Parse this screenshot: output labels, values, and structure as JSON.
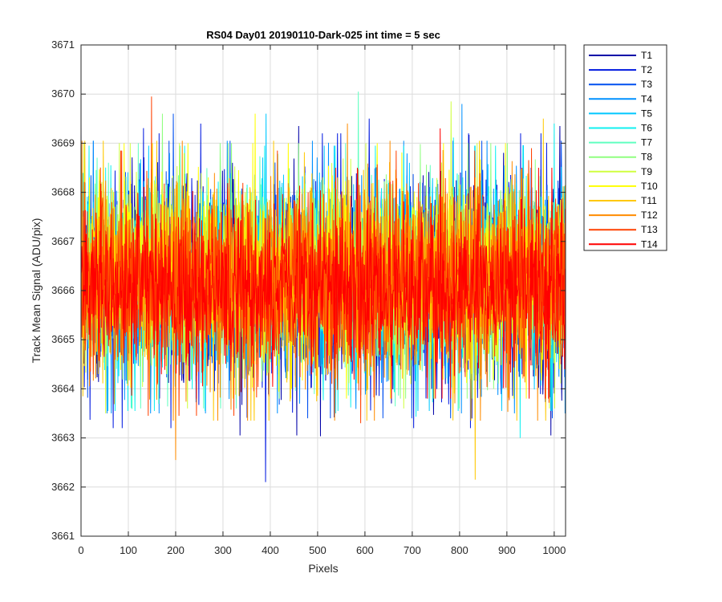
{
  "chart_data": {
    "type": "line",
    "title": "RS04 Day01 20190110-Dark-025 int time = 5 sec",
    "xlabel": "Pixels",
    "ylabel": "Track Mean Signal (ADU/pix)",
    "xlim": [
      0,
      1024
    ],
    "ylim": [
      3661,
      3671
    ],
    "xticks": [
      0,
      100,
      200,
      300,
      400,
      500,
      600,
      700,
      800,
      900,
      1000
    ],
    "yticks": [
      3661,
      3662,
      3663,
      3664,
      3665,
      3666,
      3667,
      3668,
      3669,
      3670,
      3671
    ],
    "grid": true,
    "legend_position": "outside-top-right",
    "series": [
      {
        "name": "T1",
        "color": "#0000a8",
        "mean": 3666.2,
        "spread": 1.05,
        "min": 3661.85,
        "max": 3669.4
      },
      {
        "name": "T2",
        "color": "#0018e0",
        "mean": 3666.2,
        "spread": 1.0,
        "min": 3662.1,
        "max": 3669.5
      },
      {
        "name": "T3",
        "color": "#0050f0",
        "mean": 3666.2,
        "spread": 0.95,
        "min": 3663.4,
        "max": 3669.6
      },
      {
        "name": "T4",
        "color": "#0090ff",
        "mean": 3666.2,
        "spread": 0.95,
        "min": 3663.5,
        "max": 3669.8
      },
      {
        "name": "T5",
        "color": "#00c8ff",
        "mean": 3666.25,
        "spread": 0.9,
        "min": 3663.5,
        "max": 3669.6
      },
      {
        "name": "T6",
        "color": "#10f0f0",
        "mean": 3666.25,
        "spread": 0.9,
        "min": 3663.0,
        "max": 3669.4
      },
      {
        "name": "T7",
        "color": "#60ffc0",
        "mean": 3666.3,
        "spread": 0.9,
        "min": 3663.6,
        "max": 3670.05
      },
      {
        "name": "T8",
        "color": "#90ff80",
        "mean": 3666.3,
        "spread": 0.9,
        "min": 3663.8,
        "max": 3669.6
      },
      {
        "name": "T9",
        "color": "#d0ff40",
        "mean": 3666.3,
        "spread": 0.9,
        "min": 3663.5,
        "max": 3669.85
      },
      {
        "name": "T10",
        "color": "#ffff00",
        "mean": 3666.3,
        "spread": 0.9,
        "min": 3663.8,
        "max": 3669.6
      },
      {
        "name": "T11",
        "color": "#ffc800",
        "mean": 3666.2,
        "spread": 0.95,
        "min": 3662.15,
        "max": 3669.5
      },
      {
        "name": "T12",
        "color": "#ff8c00",
        "mean": 3666.2,
        "spread": 0.95,
        "min": 3662.55,
        "max": 3669.4
      },
      {
        "name": "T13",
        "color": "#ff4000",
        "mean": 3666.15,
        "spread": 0.9,
        "min": 3663.3,
        "max": 3669.95
      },
      {
        "name": "T14",
        "color": "#ff0000",
        "mean": 3666.1,
        "spread": 0.8,
        "min": 3663.8,
        "max": 3669.3
      }
    ]
  }
}
